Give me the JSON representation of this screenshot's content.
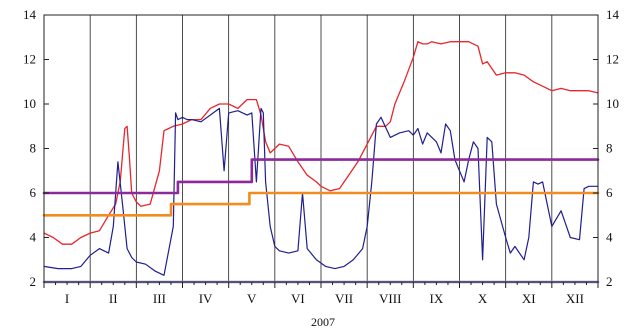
{
  "chart_data": {
    "type": "line",
    "title": "",
    "xlabel": "2007",
    "ylabel": "",
    "ylim": [
      2,
      14
    ],
    "y_ticks": [
      "2",
      "4",
      "6",
      "8",
      "10",
      "12",
      "14"
    ],
    "y_ticks_right": [
      "2",
      "4",
      "6",
      "8",
      "10",
      "12",
      "14"
    ],
    "categories": [
      "I",
      "II",
      "III",
      "IV",
      "V",
      "VI",
      "VII",
      "VIII",
      "IX",
      "X",
      "XI",
      "XII"
    ],
    "grid": true,
    "legend": "none",
    "series": [
      {
        "color": "#e8262b",
        "width": 1.3,
        "x": [
          0,
          0.2,
          0.4,
          0.6,
          0.8,
          1.0,
          1.2,
          1.4,
          1.55,
          1.65,
          1.75,
          1.8,
          1.85,
          1.9,
          2.0,
          2.1,
          2.3,
          2.5,
          2.6,
          2.7,
          2.8,
          3.0,
          3.2,
          3.4,
          3.6,
          3.8,
          4.0,
          4.2,
          4.4,
          4.6,
          4.7,
          4.8,
          4.9,
          5.0,
          5.1,
          5.3,
          5.5,
          5.7,
          5.9,
          6.0,
          6.2,
          6.4,
          6.6,
          6.8,
          7.0,
          7.2,
          7.4,
          7.5,
          7.6,
          7.8,
          8.0,
          8.1,
          8.2,
          8.3,
          8.4,
          8.6,
          8.8,
          9.0,
          9.2,
          9.4,
          9.5,
          9.6,
          9.8,
          10.0,
          10.2,
          10.4,
          10.6,
          10.8,
          11.0,
          11.2,
          11.4,
          11.6,
          11.8,
          12.0
        ],
        "values": [
          4.2,
          4.0,
          3.7,
          3.7,
          4.0,
          4.2,
          4.3,
          5.0,
          5.5,
          6.5,
          8.9,
          9.0,
          7.6,
          6.0,
          5.6,
          5.4,
          5.5,
          7.0,
          8.8,
          8.9,
          9.0,
          9.1,
          9.3,
          9.3,
          9.8,
          10.0,
          10.0,
          9.8,
          10.2,
          10.2,
          9.5,
          8.3,
          7.8,
          8.0,
          8.2,
          8.1,
          7.4,
          6.8,
          6.5,
          6.3,
          6.1,
          6.2,
          6.8,
          7.4,
          8.2,
          9.0,
          9.0,
          9.2,
          10.0,
          11.0,
          12.1,
          12.8,
          12.7,
          12.7,
          12.8,
          12.7,
          12.8,
          12.8,
          12.8,
          12.6,
          11.8,
          11.9,
          11.3,
          11.4,
          11.4,
          11.3,
          11.0,
          10.8,
          10.6,
          10.7,
          10.6,
          10.6,
          10.6,
          10.5
        ]
      },
      {
        "color": "#1f1f8f",
        "width": 1.2,
        "x": [
          0,
          0.3,
          0.6,
          0.8,
          1.0,
          1.2,
          1.4,
          1.5,
          1.6,
          1.7,
          1.8,
          1.9,
          2.0,
          2.2,
          2.4,
          2.6,
          2.8,
          2.85,
          2.9,
          3.0,
          3.1,
          3.2,
          3.4,
          3.6,
          3.8,
          3.9,
          4.0,
          4.2,
          4.4,
          4.5,
          4.6,
          4.7,
          4.75,
          4.8,
          4.9,
          5.0,
          5.1,
          5.3,
          5.5,
          5.6,
          5.7,
          5.9,
          6.1,
          6.3,
          6.5,
          6.7,
          6.9,
          7.0,
          7.1,
          7.2,
          7.3,
          7.5,
          7.7,
          7.9,
          8.0,
          8.1,
          8.2,
          8.3,
          8.5,
          8.6,
          8.7,
          8.8,
          8.9,
          9.0,
          9.1,
          9.2,
          9.3,
          9.4,
          9.5,
          9.6,
          9.7,
          9.8,
          10.0,
          10.1,
          10.2,
          10.4,
          10.5,
          10.6,
          10.7,
          10.8,
          11.0,
          11.2,
          11.4,
          11.6,
          11.7,
          11.8,
          12.0
        ],
        "values": [
          2.7,
          2.6,
          2.6,
          2.7,
          3.2,
          3.5,
          3.3,
          4.5,
          7.4,
          5.5,
          3.5,
          3.1,
          2.9,
          2.8,
          2.5,
          2.3,
          4.5,
          9.6,
          9.3,
          9.4,
          9.3,
          9.3,
          9.2,
          9.5,
          9.8,
          7.0,
          9.6,
          9.7,
          9.5,
          9.6,
          6.5,
          9.8,
          9.6,
          6.5,
          4.5,
          3.6,
          3.4,
          3.3,
          3.4,
          6.0,
          3.5,
          3.0,
          2.7,
          2.6,
          2.7,
          3.0,
          3.5,
          4.5,
          6.5,
          9.1,
          9.4,
          8.5,
          8.7,
          8.8,
          8.6,
          8.9,
          8.2,
          8.7,
          8.3,
          7.8,
          9.1,
          8.8,
          7.5,
          7.0,
          6.5,
          7.5,
          8.3,
          8.0,
          3.0,
          8.5,
          8.3,
          5.5,
          4.0,
          3.3,
          3.6,
          3.0,
          4.0,
          6.5,
          6.4,
          6.5,
          4.5,
          5.2,
          4.0,
          3.9,
          6.2,
          6.3,
          6.3
        ]
      },
      {
        "color": "#8b2a9a",
        "width": 2.6,
        "x": [
          0,
          2.9,
          2.9,
          4.5,
          4.5,
          12
        ],
        "values": [
          6.0,
          6.0,
          6.5,
          6.5,
          7.5,
          7.5
        ]
      },
      {
        "color": "#f28b20",
        "width": 2.6,
        "x": [
          0,
          2.75,
          2.75,
          4.45,
          4.45,
          12
        ],
        "values": [
          5.0,
          5.0,
          5.5,
          5.5,
          6.0,
          6.0
        ]
      },
      {
        "color": "#8a86c4",
        "width": 2.6,
        "x": [
          0,
          12
        ],
        "values": [
          2.0,
          2.0
        ]
      }
    ]
  }
}
